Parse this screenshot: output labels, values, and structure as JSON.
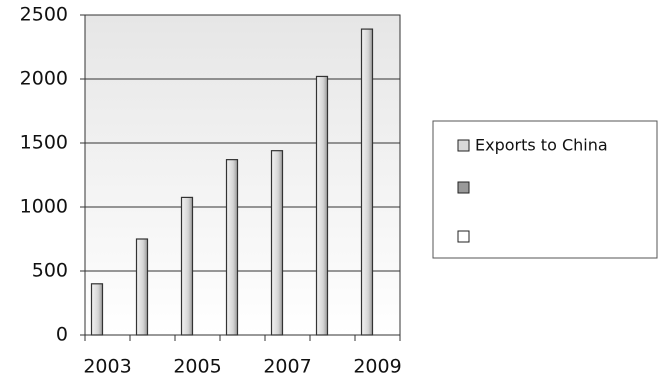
{
  "chart_data": {
    "type": "bar",
    "categories": [
      "2003",
      null,
      "2005",
      null,
      "2007",
      null,
      "2009"
    ],
    "series": [
      {
        "name": "Exports to China",
        "color": "#d9d9d9",
        "values": [
          400,
          750,
          1075,
          1370,
          1440,
          2020,
          2390
        ]
      }
    ],
    "ylim": [
      0,
      2500
    ],
    "yticks": [
      0,
      500,
      1000,
      1500,
      2000,
      2500
    ],
    "grid": true
  }
}
